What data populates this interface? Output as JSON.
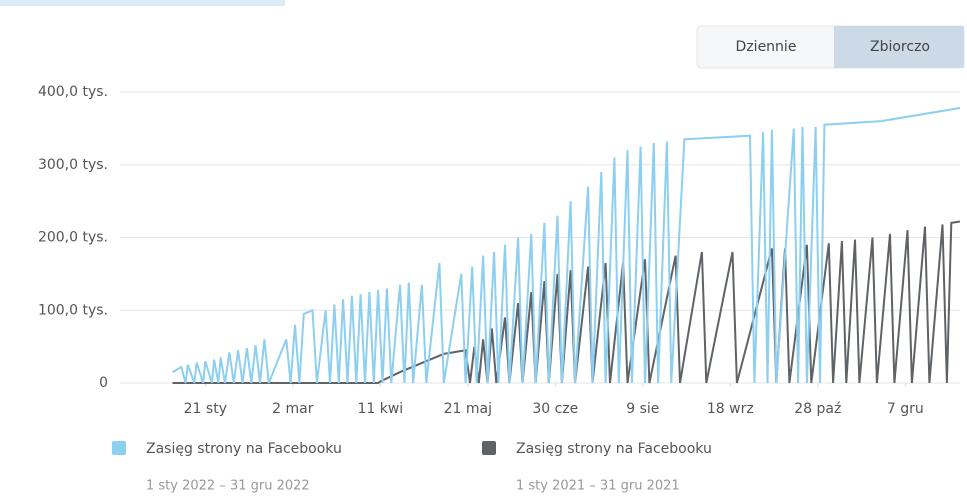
{
  "chart_data": {
    "type": "line",
    "buttons": [
      "Dziennie",
      "Zbiorczo"
    ],
    "active_button": 1,
    "xlim": [
      -18,
      366
    ],
    "xticks": [
      {
        "value": 21,
        "label": "21 sty"
      },
      {
        "value": 61,
        "label": "2 mar"
      },
      {
        "value": 101,
        "label": "11 kwi"
      },
      {
        "value": 141,
        "label": "21 maj"
      },
      {
        "value": 181,
        "label": "30 cze"
      },
      {
        "value": 221,
        "label": "9 sie"
      },
      {
        "value": 261,
        "label": "18 wrz"
      },
      {
        "value": 301,
        "label": "28 paź"
      },
      {
        "value": 341,
        "label": "7 gru"
      }
    ],
    "ylim": [
      0,
      400000
    ],
    "yticks": [
      0,
      {
        "value": 100000,
        "label": "100,0 tys."
      },
      {
        "value": 200000,
        "label": "200,0 tys."
      },
      {
        "value": 300000,
        "label": "300,0 tys."
      },
      {
        "value": 400000,
        "label": "400,0 tys."
      }
    ],
    "grid": true,
    "series": [
      {
        "name": "Zasięg strony na Facebooku",
        "period": "1 sty 2022 – 31 gru 2022",
        "color": "#8dcff1",
        "x": [
          6,
          10,
          12,
          13,
          16,
          17,
          20,
          21,
          24,
          25,
          27,
          28,
          30,
          32,
          34,
          36,
          38,
          40,
          42,
          44,
          46,
          48,
          50,
          58,
          60,
          62,
          64,
          66,
          70,
          72,
          76,
          78,
          80,
          82,
          84,
          86,
          88,
          90,
          92,
          94,
          96,
          98,
          100,
          102,
          104,
          106,
          110,
          112,
          114,
          116,
          120,
          122,
          128,
          130,
          138,
          140,
          143,
          145,
          148,
          150,
          153,
          155,
          158,
          160,
          164,
          166,
          170,
          172,
          176,
          178,
          182,
          184,
          188,
          190,
          196,
          198,
          202,
          204,
          208,
          210,
          214,
          216,
          220,
          222,
          226,
          228,
          232,
          234,
          240,
          270,
          272,
          276,
          278,
          280,
          282,
          290,
          292,
          294,
          296,
          300,
          302,
          304,
          330,
          366
        ],
        "values": [
          15000,
          22000,
          0,
          25000,
          0,
          28000,
          0,
          30000,
          0,
          32000,
          0,
          35000,
          0,
          42000,
          0,
          45000,
          0,
          48000,
          0,
          52000,
          0,
          60000,
          0,
          60000,
          0,
          80000,
          0,
          95000,
          100000,
          0,
          100000,
          0,
          108000,
          0,
          115000,
          0,
          120000,
          0,
          122000,
          0,
          125000,
          0,
          128000,
          0,
          130000,
          0,
          135000,
          0,
          138000,
          0,
          135000,
          0,
          165000,
          0,
          150000,
          0,
          160000,
          0,
          175000,
          0,
          180000,
          0,
          190000,
          0,
          200000,
          0,
          205000,
          0,
          220000,
          0,
          230000,
          0,
          250000,
          0,
          270000,
          0,
          290000,
          0,
          310000,
          0,
          320000,
          0,
          325000,
          0,
          330000,
          0,
          332000,
          0,
          335000,
          340000,
          0,
          345000,
          0,
          348000,
          0,
          350000,
          0,
          352000,
          0,
          352000,
          0,
          355000,
          360000,
          378000
        ]
      },
      {
        "name": "Zasięg strony na Facebooku",
        "period": "1 sty 2021 – 31 gru 2021",
        "color": "#5f6366",
        "x": [
          6,
          100,
          101,
          110,
          130,
          140,
          142,
          144,
          146,
          148,
          150,
          152,
          154,
          158,
          160,
          164,
          166,
          170,
          172,
          176,
          178,
          182,
          184,
          188,
          190,
          196,
          198,
          204,
          206,
          212,
          214,
          222,
          224,
          236,
          238,
          248,
          250,
          262,
          264,
          280,
          282,
          286,
          288,
          296,
          298,
          306,
          308,
          312,
          314,
          318,
          320,
          326,
          328,
          334,
          336,
          342,
          344,
          350,
          352,
          358,
          360,
          362,
          366
        ],
        "values": [
          0,
          0,
          2000,
          15000,
          40000,
          45000,
          0,
          50000,
          0,
          60000,
          0,
          75000,
          0,
          90000,
          0,
          110000,
          0,
          125000,
          0,
          140000,
          0,
          150000,
          0,
          155000,
          0,
          160000,
          0,
          165000,
          0,
          165000,
          0,
          170000,
          0,
          175000,
          0,
          180000,
          0,
          180000,
          0,
          185000,
          0,
          185000,
          0,
          190000,
          0,
          192000,
          0,
          195000,
          0,
          197000,
          0,
          200000,
          0,
          205000,
          0,
          210000,
          0,
          215000,
          0,
          218000,
          0,
          220000,
          222000
        ]
      }
    ]
  }
}
